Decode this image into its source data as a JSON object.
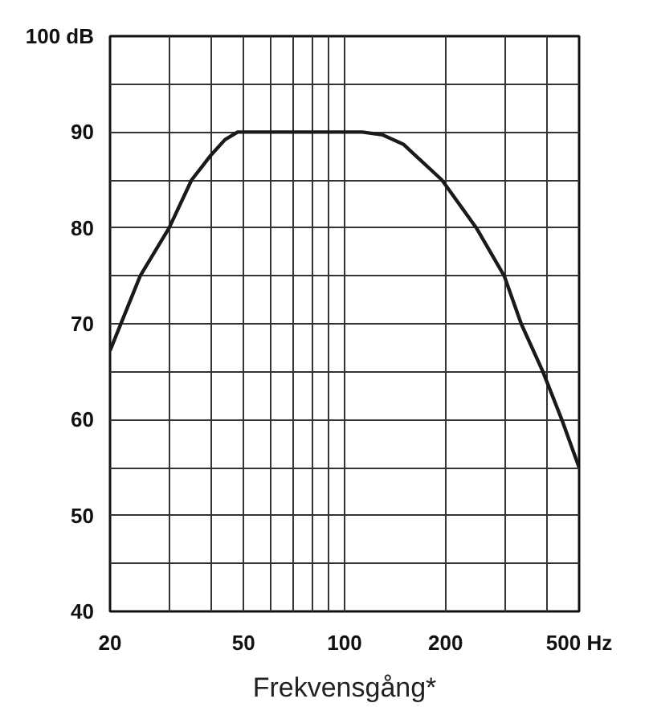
{
  "chart_data": {
    "type": "line",
    "xlabel": "Frekvensgång*",
    "log": "x",
    "x": [
      20,
      24.6,
      30,
      35,
      40,
      44,
      48,
      100,
      113,
      130,
      150,
      195,
      247,
      299,
      336,
      390,
      444,
      500
    ],
    "series": [
      {
        "color": "#1a1a1a",
        "values": [
          67.2,
          75,
          80,
          85,
          87.6,
          89.2,
          90,
          90,
          90,
          89.7,
          88.7,
          85,
          80,
          75,
          70,
          65,
          60,
          55
        ]
      }
    ],
    "xlim": [
      20,
      500
    ],
    "ylim": [
      40,
      100
    ],
    "xticks": [
      20,
      {
        "value": 30,
        "label": null
      },
      {
        "value": 40,
        "label": null
      },
      50,
      {
        "value": 60,
        "label": null
      },
      {
        "value": 70,
        "label": null
      },
      {
        "value": 80,
        "label": null
      },
      {
        "value": 90,
        "label": null
      },
      100,
      200,
      {
        "value": 300,
        "label": null
      },
      {
        "value": 400,
        "label": null
      },
      {
        "value": 500,
        "label": "500 Hz"
      }
    ],
    "yticks": [
      40,
      {
        "value": 45,
        "label": null
      },
      50,
      {
        "value": 55,
        "label": null
      },
      60,
      {
        "value": 65,
        "label": null
      },
      70,
      {
        "value": 75,
        "label": null
      },
      80,
      {
        "value": 85,
        "label": null
      },
      90,
      {
        "value": 95,
        "label": null
      },
      {
        "value": 100,
        "label": "100 dB"
      }
    ],
    "grid": true
  }
}
